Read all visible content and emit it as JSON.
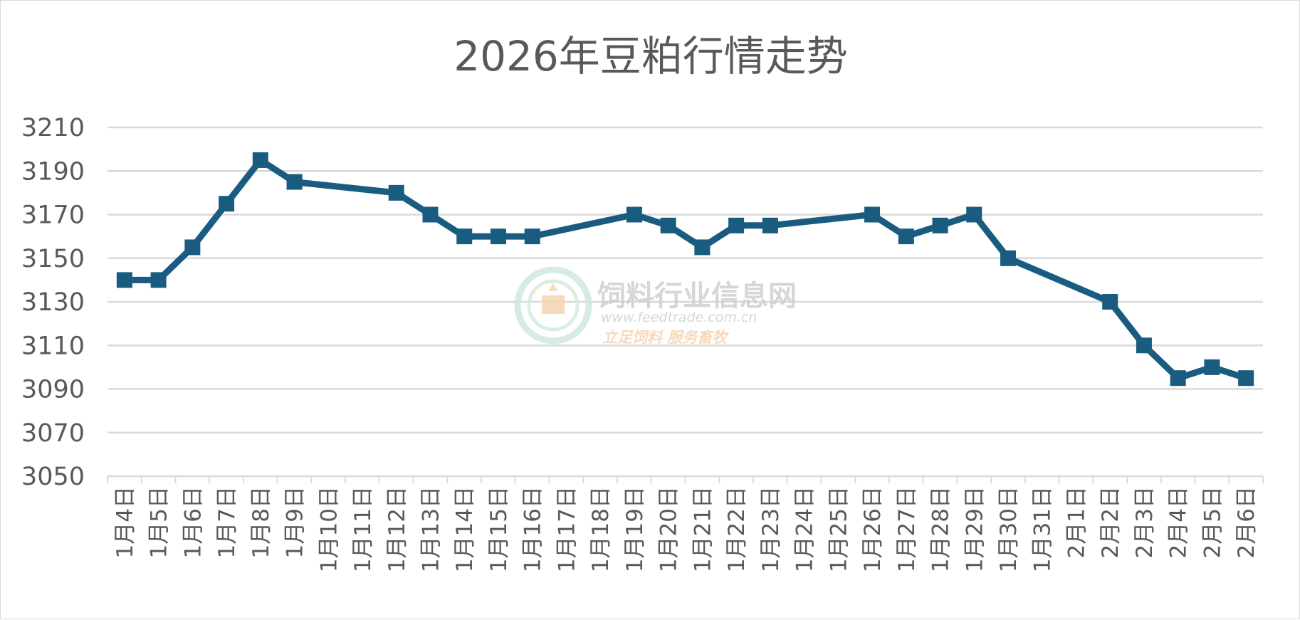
{
  "chart_data": {
    "type": "line",
    "title": "2026年豆粕行情走势",
    "xlabel": "",
    "ylabel": "",
    "ylim": [
      3050,
      3210
    ],
    "yticks": [
      3050,
      3070,
      3090,
      3110,
      3130,
      3150,
      3170,
      3190,
      3210
    ],
    "grid": true,
    "legend": "none",
    "categories": [
      "1月4日",
      "1月5日",
      "1月6日",
      "1月7日",
      "1月8日",
      "1月9日",
      "1月10日",
      "1月11日",
      "1月12日",
      "1月13日",
      "1月14日",
      "1月15日",
      "1月16日",
      "1月17日",
      "1月18日",
      "1月19日",
      "1月20日",
      "1月21日",
      "1月22日",
      "1月23日",
      "1月24日",
      "1月25日",
      "1月26日",
      "1月27日",
      "1月28日",
      "1月29日",
      "1月30日",
      "1月31日",
      "2月1日",
      "2月2日",
      "2月3日",
      "2月4日",
      "2月5日",
      "2月6日"
    ],
    "series": [
      {
        "color": "#1a5c80",
        "marker": "square",
        "values": [
          3140,
          3140,
          3155,
          3175,
          3195,
          3185,
          null,
          null,
          3180,
          3170,
          3160,
          3160,
          3160,
          null,
          null,
          3170,
          3165,
          3155,
          3165,
          3165,
          null,
          null,
          3170,
          3160,
          3165,
          3170,
          3150,
          null,
          null,
          3130,
          3110,
          3095,
          3100,
          3095
        ]
      }
    ]
  },
  "watermark": {
    "name": "饲料行业信息网",
    "url": "www.feedtrade.com.cn",
    "slogan": "立足饲料   服务畜牧"
  },
  "colors": {
    "line": "#1a5c80",
    "grid": "#d9d9d9",
    "text": "#595959"
  }
}
